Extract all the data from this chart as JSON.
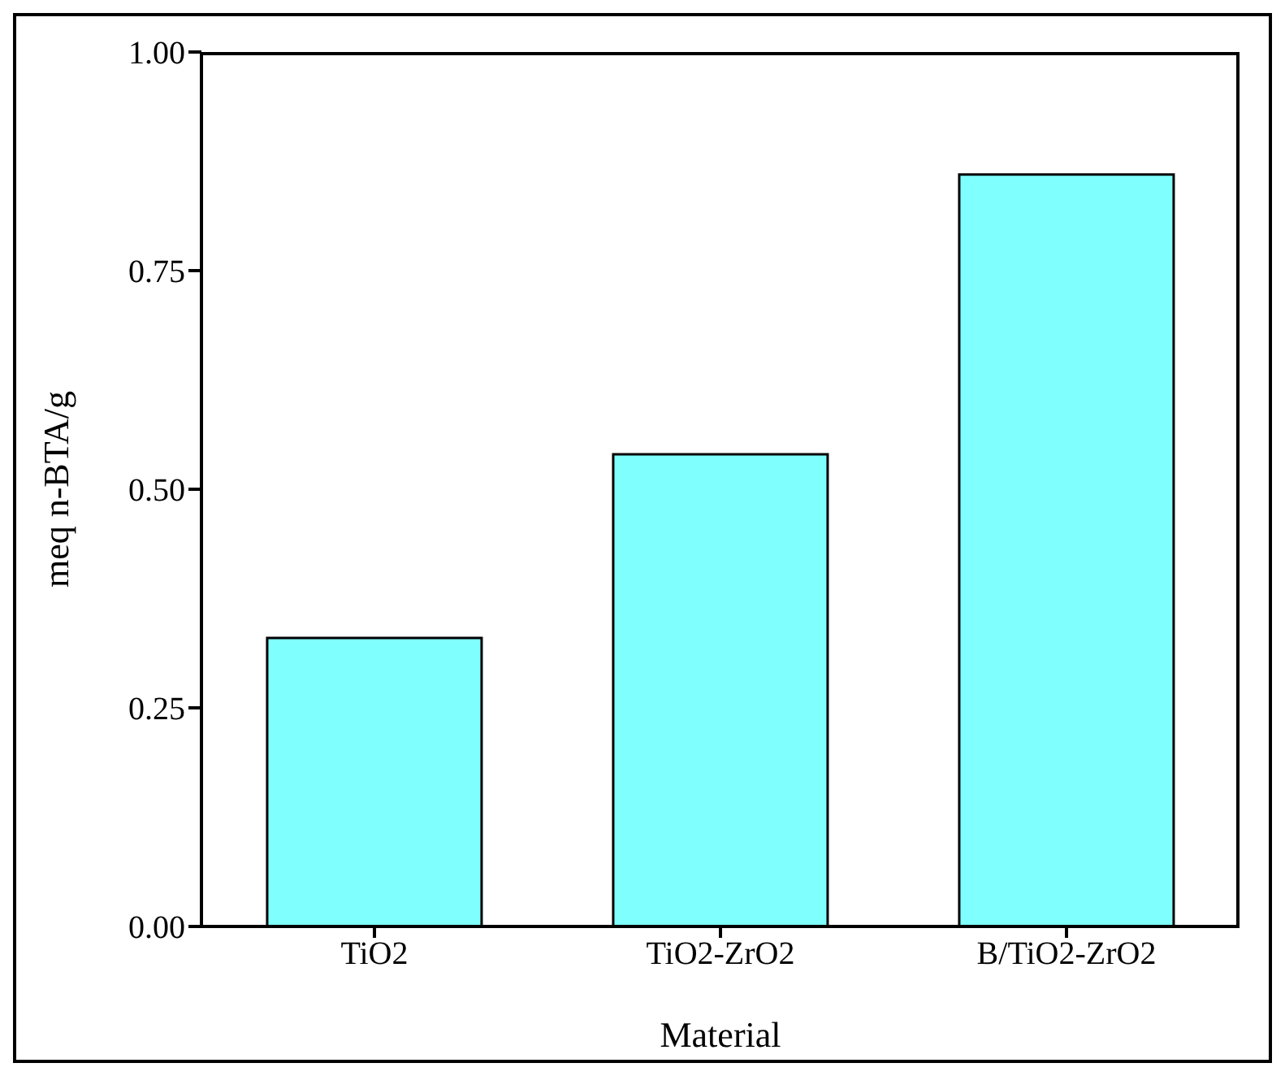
{
  "chart_data": {
    "type": "bar",
    "xlabel": "Material",
    "ylabel": "meq n-BTA/g",
    "categories": [
      "TiO2",
      "TiO2-ZrO2",
      "B/TiO2-ZrO2"
    ],
    "values": [
      0.33,
      0.54,
      0.86
    ],
    "color": "#80ffff",
    "ylim": [
      0,
      1
    ],
    "yticks": [
      {
        "value": 0,
        "label": "0.00"
      },
      {
        "value": 0.25,
        "label": "0.25"
      },
      {
        "value": 0.5,
        "label": "0.50"
      },
      {
        "value": 0.75,
        "label": "0.75"
      },
      {
        "value": 1,
        "label": "1.00"
      }
    ],
    "grid": false,
    "legend": false
  }
}
